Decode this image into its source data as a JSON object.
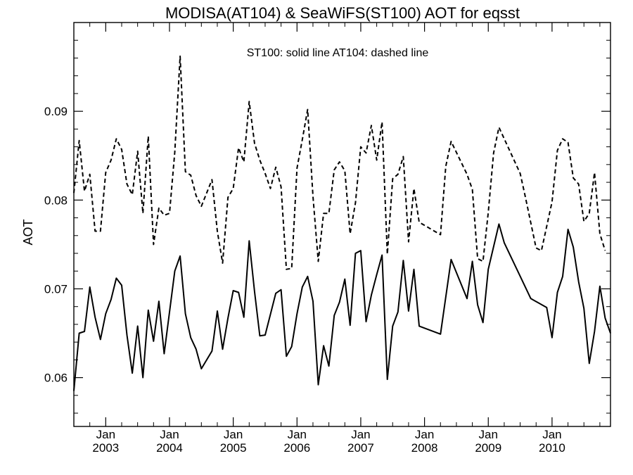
{
  "chart_data": {
    "type": "line",
    "title": "MODISA(AT104) & SeaWiFS(ST100)  AOT for eqsst",
    "annotation": "ST100: solid line   AT104: dashed line",
    "xlabel": "",
    "ylabel": "AOT",
    "xlim": [
      "2002-07-01",
      "2010-12-01"
    ],
    "ylim": [
      0.0545,
      0.1
    ],
    "yticks": [
      0.06,
      0.07,
      0.08,
      0.09
    ],
    "ytick_labels": [
      "0.06",
      "0.07",
      "0.08",
      "0.09"
    ],
    "xticks": [
      "2003-01-01",
      "2004-01-01",
      "2005-01-01",
      "2006-01-01",
      "2007-01-01",
      "2008-01-01",
      "2009-01-01",
      "2010-01-01"
    ],
    "xtick_labels_top": [
      "Jan",
      "Jan",
      "Jan",
      "Jan",
      "Jan",
      "Jan",
      "Jan",
      "Jan"
    ],
    "xtick_labels_bottom": [
      "2003",
      "2004",
      "2005",
      "2006",
      "2007",
      "2008",
      "2009",
      "2010"
    ],
    "grid": false,
    "series": [
      {
        "name": "ST100",
        "line_style": "solid",
        "color": "#000000",
        "points": [
          [
            "2002-07-01",
            0.0585
          ],
          [
            "2002-08-01",
            0.065
          ],
          [
            "2002-09-01",
            0.0652
          ],
          [
            "2002-10-01",
            0.0702
          ],
          [
            "2002-11-01",
            0.0668
          ],
          [
            "2002-12-01",
            0.0643
          ],
          [
            "2003-01-01",
            0.0672
          ],
          [
            "2003-02-01",
            0.0688
          ],
          [
            "2003-03-01",
            0.0712
          ],
          [
            "2003-04-01",
            0.0704
          ],
          [
            "2003-05-01",
            0.0648
          ],
          [
            "2003-06-01",
            0.0605
          ],
          [
            "2003-07-01",
            0.0658
          ],
          [
            "2003-08-01",
            0.06
          ],
          [
            "2003-09-01",
            0.0676
          ],
          [
            "2003-10-01",
            0.0641
          ],
          [
            "2003-11-01",
            0.0686
          ],
          [
            "2003-12-01",
            0.0627
          ],
          [
            "2004-02-01",
            0.072
          ],
          [
            "2004-03-01",
            0.0737
          ],
          [
            "2004-04-01",
            0.0672
          ],
          [
            "2004-05-01",
            0.0645
          ],
          [
            "2004-06-01",
            0.0632
          ],
          [
            "2004-07-01",
            0.061
          ],
          [
            "2004-09-01",
            0.063
          ],
          [
            "2004-10-01",
            0.0675
          ],
          [
            "2004-11-01",
            0.0632
          ],
          [
            "2004-12-01",
            0.0667
          ],
          [
            "2005-01-01",
            0.0698
          ],
          [
            "2005-02-01",
            0.0696
          ],
          [
            "2005-03-01",
            0.0668
          ],
          [
            "2005-04-01",
            0.0754
          ],
          [
            "2005-05-01",
            0.0697
          ],
          [
            "2005-06-01",
            0.0647
          ],
          [
            "2005-07-01",
            0.0648
          ],
          [
            "2005-09-01",
            0.0695
          ],
          [
            "2005-10-01",
            0.0699
          ],
          [
            "2005-11-01",
            0.0624
          ],
          [
            "2005-12-01",
            0.0635
          ],
          [
            "2006-01-01",
            0.0672
          ],
          [
            "2006-02-01",
            0.0702
          ],
          [
            "2006-03-01",
            0.0714
          ],
          [
            "2006-04-01",
            0.0686
          ],
          [
            "2006-05-01",
            0.0592
          ],
          [
            "2006-06-01",
            0.0636
          ],
          [
            "2006-07-01",
            0.0613
          ],
          [
            "2006-08-01",
            0.067
          ],
          [
            "2006-09-01",
            0.0685
          ],
          [
            "2006-10-01",
            0.0711
          ],
          [
            "2006-11-01",
            0.0659
          ],
          [
            "2006-12-01",
            0.074
          ],
          [
            "2007-01-01",
            0.0743
          ],
          [
            "2007-02-01",
            0.0663
          ],
          [
            "2007-03-01",
            0.0693
          ],
          [
            "2007-04-01",
            0.0716
          ],
          [
            "2007-05-01",
            0.0738
          ],
          [
            "2007-06-01",
            0.0598
          ],
          [
            "2007-07-01",
            0.0658
          ],
          [
            "2007-08-01",
            0.0674
          ],
          [
            "2007-09-01",
            0.0732
          ],
          [
            "2007-10-01",
            0.0675
          ],
          [
            "2007-11-01",
            0.0722
          ],
          [
            "2007-12-01",
            0.0658
          ],
          [
            "2008-04-01",
            0.0649
          ],
          [
            "2008-06-01",
            0.0733
          ],
          [
            "2008-09-01",
            0.0689
          ],
          [
            "2008-10-01",
            0.0731
          ],
          [
            "2008-11-01",
            0.0682
          ],
          [
            "2008-12-01",
            0.0662
          ],
          [
            "2009-01-01",
            0.0722
          ],
          [
            "2009-03-01",
            0.0773
          ],
          [
            "2009-04-01",
            0.0752
          ],
          [
            "2009-09-01",
            0.0689
          ],
          [
            "2009-12-01",
            0.0679
          ],
          [
            "2010-01-01",
            0.0645
          ],
          [
            "2010-02-01",
            0.0696
          ],
          [
            "2010-03-01",
            0.0714
          ],
          [
            "2010-04-01",
            0.0767
          ],
          [
            "2010-05-01",
            0.0747
          ],
          [
            "2010-06-01",
            0.0708
          ],
          [
            "2010-07-01",
            0.0678
          ],
          [
            "2010-08-01",
            0.0616
          ],
          [
            "2010-09-01",
            0.0652
          ],
          [
            "2010-10-01",
            0.0703
          ],
          [
            "2010-11-01",
            0.0667
          ],
          [
            "2010-12-01",
            0.065
          ]
        ]
      },
      {
        "name": "AT104",
        "line_style": "dashed",
        "color": "#000000",
        "points": [
          [
            "2002-07-01",
            0.0808
          ],
          [
            "2002-08-01",
            0.0867
          ],
          [
            "2002-09-01",
            0.081
          ],
          [
            "2002-10-01",
            0.0829
          ],
          [
            "2002-11-01",
            0.0765
          ],
          [
            "2002-12-01",
            0.0765
          ],
          [
            "2003-01-01",
            0.0831
          ],
          [
            "2003-02-01",
            0.0845
          ],
          [
            "2003-03-01",
            0.0869
          ],
          [
            "2003-04-01",
            0.0857
          ],
          [
            "2003-05-01",
            0.0818
          ],
          [
            "2003-06-01",
            0.0806
          ],
          [
            "2003-07-01",
            0.0855
          ],
          [
            "2003-08-01",
            0.0785
          ],
          [
            "2003-09-01",
            0.0872
          ],
          [
            "2003-10-01",
            0.075
          ],
          [
            "2003-11-01",
            0.0791
          ],
          [
            "2003-12-01",
            0.0783
          ],
          [
            "2004-01-01",
            0.0785
          ],
          [
            "2004-02-01",
            0.0854
          ],
          [
            "2004-03-01",
            0.0962
          ],
          [
            "2004-04-01",
            0.0832
          ],
          [
            "2004-05-01",
            0.0828
          ],
          [
            "2004-06-01",
            0.0805
          ],
          [
            "2004-07-01",
            0.0793
          ],
          [
            "2004-09-01",
            0.0823
          ],
          [
            "2004-10-01",
            0.0765
          ],
          [
            "2004-11-01",
            0.0729
          ],
          [
            "2004-12-01",
            0.0803
          ],
          [
            "2005-01-01",
            0.0813
          ],
          [
            "2005-02-01",
            0.0859
          ],
          [
            "2005-03-01",
            0.0843
          ],
          [
            "2005-04-01",
            0.0911
          ],
          [
            "2005-05-01",
            0.0864
          ],
          [
            "2005-06-01",
            0.0845
          ],
          [
            "2005-07-01",
            0.083
          ],
          [
            "2005-08-01",
            0.0813
          ],
          [
            "2005-09-01",
            0.0837
          ],
          [
            "2005-10-01",
            0.0815
          ],
          [
            "2005-11-01",
            0.0722
          ],
          [
            "2005-12-01",
            0.0723
          ],
          [
            "2006-01-01",
            0.0836
          ],
          [
            "2006-02-01",
            0.0868
          ],
          [
            "2006-03-01",
            0.0902
          ],
          [
            "2006-04-01",
            0.0804
          ],
          [
            "2006-05-01",
            0.0731
          ],
          [
            "2006-06-01",
            0.0785
          ],
          [
            "2006-07-01",
            0.0785
          ],
          [
            "2006-08-01",
            0.0834
          ],
          [
            "2006-09-01",
            0.0843
          ],
          [
            "2006-10-01",
            0.0833
          ],
          [
            "2006-11-01",
            0.0762
          ],
          [
            "2006-12-01",
            0.0797
          ],
          [
            "2007-01-01",
            0.086
          ],
          [
            "2007-02-01",
            0.0853
          ],
          [
            "2007-03-01",
            0.0884
          ],
          [
            "2007-04-01",
            0.0845
          ],
          [
            "2007-05-01",
            0.0888
          ],
          [
            "2007-06-01",
            0.0739
          ],
          [
            "2007-07-01",
            0.0824
          ],
          [
            "2007-08-01",
            0.0829
          ],
          [
            "2007-09-01",
            0.0849
          ],
          [
            "2007-10-01",
            0.0753
          ],
          [
            "2007-11-01",
            0.0813
          ],
          [
            "2007-12-01",
            0.0775
          ],
          [
            "2008-04-01",
            0.0761
          ],
          [
            "2008-05-01",
            0.0838
          ],
          [
            "2008-06-01",
            0.0866
          ],
          [
            "2008-09-01",
            0.0829
          ],
          [
            "2008-10-01",
            0.0812
          ],
          [
            "2008-11-01",
            0.0734
          ],
          [
            "2008-12-01",
            0.0731
          ],
          [
            "2009-01-01",
            0.0786
          ],
          [
            "2009-02-01",
            0.0853
          ],
          [
            "2009-03-01",
            0.0882
          ],
          [
            "2009-07-01",
            0.083
          ],
          [
            "2009-08-01",
            0.0803
          ],
          [
            "2009-10-01",
            0.0746
          ],
          [
            "2009-11-01",
            0.0743
          ],
          [
            "2010-01-01",
            0.0798
          ],
          [
            "2010-02-01",
            0.0856
          ],
          [
            "2010-03-01",
            0.0869
          ],
          [
            "2010-04-01",
            0.0865
          ],
          [
            "2010-05-01",
            0.0825
          ],
          [
            "2010-06-01",
            0.0818
          ],
          [
            "2010-07-01",
            0.0776
          ],
          [
            "2010-08-01",
            0.0785
          ],
          [
            "2010-09-01",
            0.0831
          ],
          [
            "2010-10-01",
            0.0762
          ],
          [
            "2010-11-01",
            0.0743
          ]
        ]
      }
    ]
  }
}
